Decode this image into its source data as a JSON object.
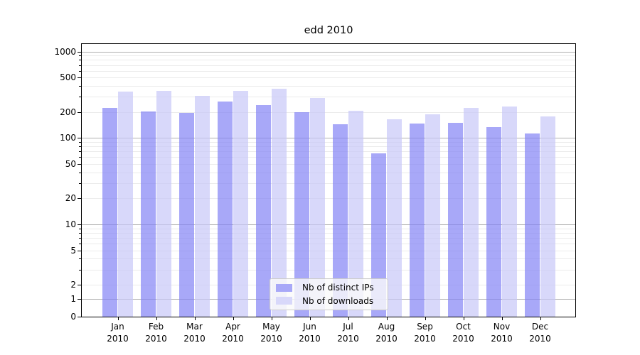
{
  "chart_data": {
    "type": "bar",
    "title": "edd 2010",
    "yscale": "symlog",
    "ylim": [
      0,
      1100
    ],
    "grid": true,
    "legend_position": "lower center",
    "y_ticks": [
      0,
      1,
      2,
      5,
      10,
      20,
      50,
      100,
      200,
      500,
      1000
    ],
    "categories": [
      "Jan 2010",
      "Feb 2010",
      "Mar 2010",
      "Apr 2010",
      "May 2010",
      "Jun 2010",
      "Jul 2010",
      "Aug 2010",
      "Sep 2010",
      "Oct 2010",
      "Nov 2010",
      "Dec 2010"
    ],
    "series": [
      {
        "name": "Nb of distinct IPs",
        "color": "#a8a8f8",
        "values": [
          225,
          203,
          196,
          262,
          239,
          198,
          144,
          67,
          146,
          149,
          133,
          113
        ]
      },
      {
        "name": "Nb of downloads",
        "color": "#d8d8fa",
        "values": [
          345,
          348,
          307,
          352,
          375,
          289,
          208,
          165,
          188,
          224,
          230,
          178
        ]
      }
    ],
    "colors": {
      "grid_major": "#b0b0b0",
      "grid_minor": "#ebebeb",
      "axis": "#000000"
    }
  }
}
